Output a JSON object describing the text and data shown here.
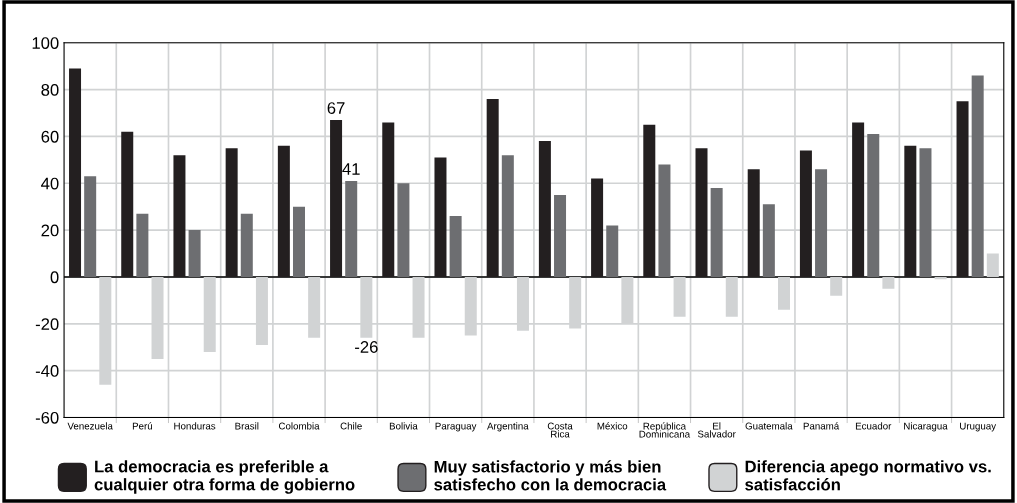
{
  "chart_data": {
    "type": "bar",
    "categories": [
      "Venezuela",
      "Perú",
      "Honduras",
      "Brasil",
      "Colombia",
      "Chile",
      "Bolivia",
      "Paraguay",
      "Argentina",
      "Costa\nRica",
      "México",
      "República\nDominicana",
      "El\nSalvador",
      "Guatemala",
      "Panamá",
      "Ecuador",
      "Nicaragua",
      "Uruguay"
    ],
    "series": [
      {
        "name": "La democracia es preferible a\ncualquier otra forma de gobierno",
        "color": "#231f20",
        "values": [
          89,
          62,
          52,
          55,
          56,
          67,
          66,
          51,
          76,
          58,
          42,
          65,
          55,
          46,
          54,
          66,
          56,
          75
        ],
        "value_labels": [
          null,
          null,
          null,
          null,
          null,
          "67",
          null,
          null,
          null,
          null,
          null,
          null,
          null,
          null,
          null,
          null,
          null,
          null
        ]
      },
      {
        "name": "Muy satisfactorio y más bien\nsatisfecho con la democracia",
        "color": "#6d6e71",
        "values": [
          43,
          27,
          20,
          27,
          30,
          41,
          40,
          26,
          52,
          35,
          22,
          48,
          38,
          31,
          46,
          61,
          55,
          86
        ],
        "value_labels": [
          null,
          null,
          null,
          null,
          null,
          "41",
          null,
          null,
          null,
          null,
          null,
          null,
          null,
          null,
          null,
          null,
          null,
          null
        ]
      },
      {
        "name": "Diferencia apego normativo vs.\nsatisfacción",
        "color": "#d1d3d4",
        "values": [
          -46,
          -35,
          -32,
          -29,
          -26,
          -26,
          -26,
          -25,
          -23,
          -22,
          -20,
          -17,
          -17,
          -14,
          -8,
          -5,
          -1,
          10
        ],
        "value_labels": [
          null,
          null,
          null,
          null,
          null,
          "-26",
          null,
          null,
          null,
          null,
          null,
          null,
          null,
          null,
          null,
          null,
          null,
          null
        ]
      }
    ],
    "ylim": [
      -60,
      100
    ],
    "yticks": [
      -60,
      -40,
      -20,
      0,
      20,
      40,
      60,
      80,
      100
    ],
    "grid": true,
    "legend": "bottom"
  }
}
